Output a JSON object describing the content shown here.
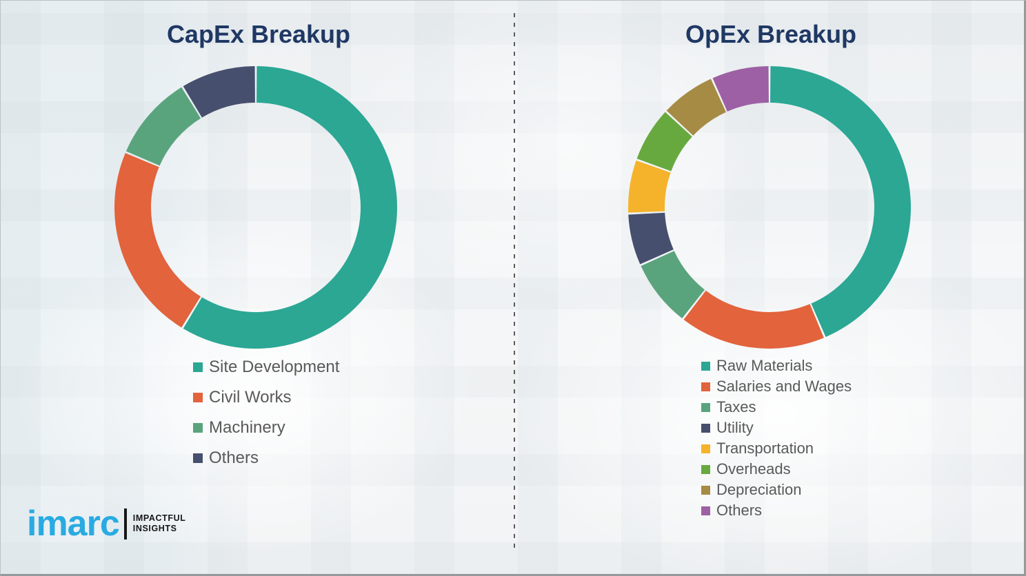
{
  "page": {
    "background_color": "#f4f6f7",
    "border_color": "#949a9c",
    "divider_style": "vertical-dashed",
    "divider_color": "#5c5c5c",
    "title_color": "#1f3864",
    "legend_text_color": "#595959"
  },
  "chart_data": [
    {
      "id": "capex",
      "type": "pie",
      "subtype": "donut",
      "title": "CapEx Breakup",
      "categories": [
        "Site Development",
        "Civil Works",
        "Machinery",
        "Others"
      ],
      "values": [
        58.7,
        22.7,
        9.9,
        8.7
      ],
      "colors": [
        "#2ba794",
        "#e2633c",
        "#5aa47d",
        "#474f6e"
      ],
      "units": "percent (estimated from arc angles; no data labels shown)",
      "start_angle_deg": 0,
      "direction": "clockwise",
      "legend_position": "below-left"
    },
    {
      "id": "opex",
      "type": "pie",
      "subtype": "donut",
      "title": "OpEx Breakup",
      "categories": [
        "Raw Materials",
        "Salaries and Wages",
        "Taxes",
        "Utility",
        "Transportation",
        "Overheads",
        "Depreciation",
        "Others"
      ],
      "values": [
        43.6,
        16.9,
        7.8,
        6.0,
        6.2,
        6.4,
        6.4,
        6.7
      ],
      "colors": [
        "#2ba794",
        "#e2633c",
        "#5aa47d",
        "#474f6e",
        "#f5b32c",
        "#68a93f",
        "#a68b44",
        "#9d60a4"
      ],
      "units": "percent (estimated from arc angles; no data labels shown)",
      "start_angle_deg": 0,
      "direction": "clockwise",
      "legend_position": "below-left"
    }
  ],
  "logo": {
    "brand": "imarc",
    "brand_color": "#29abe2",
    "tagline_line1": "IMPACTFUL",
    "tagline_line2": "INSIGHTS",
    "tagline_color": "#161616"
  }
}
